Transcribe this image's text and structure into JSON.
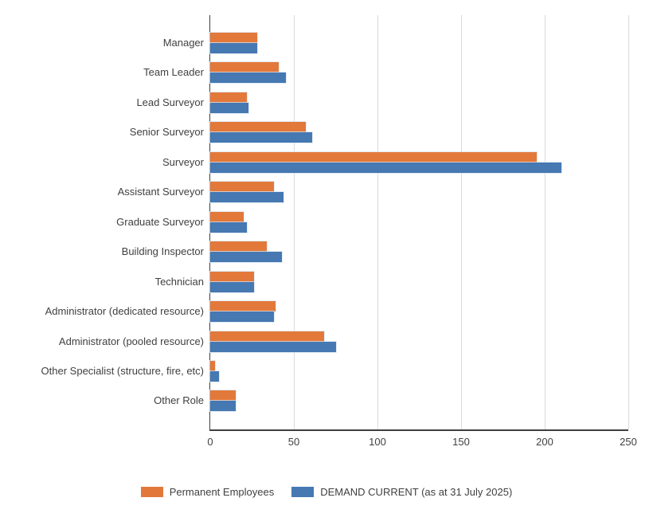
{
  "chart_data": {
    "type": "bar",
    "orientation": "horizontal",
    "title": "",
    "xlabel": "",
    "ylabel": "",
    "categories": [
      "Manager",
      "Team Leader",
      "Lead Surveyor",
      "Senior Surveyor",
      "Surveyor",
      "Assistant Surveyor",
      "Graduate Surveyor",
      "Building Inspector",
      "Technician",
      "Administrator (dedicated resource)",
      "Administrator (pooled resource)",
      "Other Specialist (structure, fire, etc)",
      "Other Role"
    ],
    "series": [
      {
        "name": "Permanent Employees",
        "color": "#e2793b",
        "values": [
          28,
          41,
          22,
          57,
          195,
          38,
          20,
          34,
          26,
          39,
          68,
          3,
          15
        ]
      },
      {
        "name": "DEMAND CURRENT (as at 31 July 2025)",
        "color": "#4678b2",
        "values": [
          28,
          45,
          23,
          61,
          210,
          44,
          22,
          43,
          26,
          38,
          75,
          5,
          15
        ]
      }
    ],
    "x_ticks": [
      0,
      50,
      100,
      150,
      200,
      250
    ],
    "xlim": [
      0,
      250
    ],
    "grid": "vertical",
    "legend_position": "bottom"
  },
  "colors": {
    "axis_line": "#3f3f3f",
    "gridline": "#d9d9d9",
    "label_text": "#404040",
    "series_1": "#e2793b",
    "series_2": "#4678b2"
  }
}
